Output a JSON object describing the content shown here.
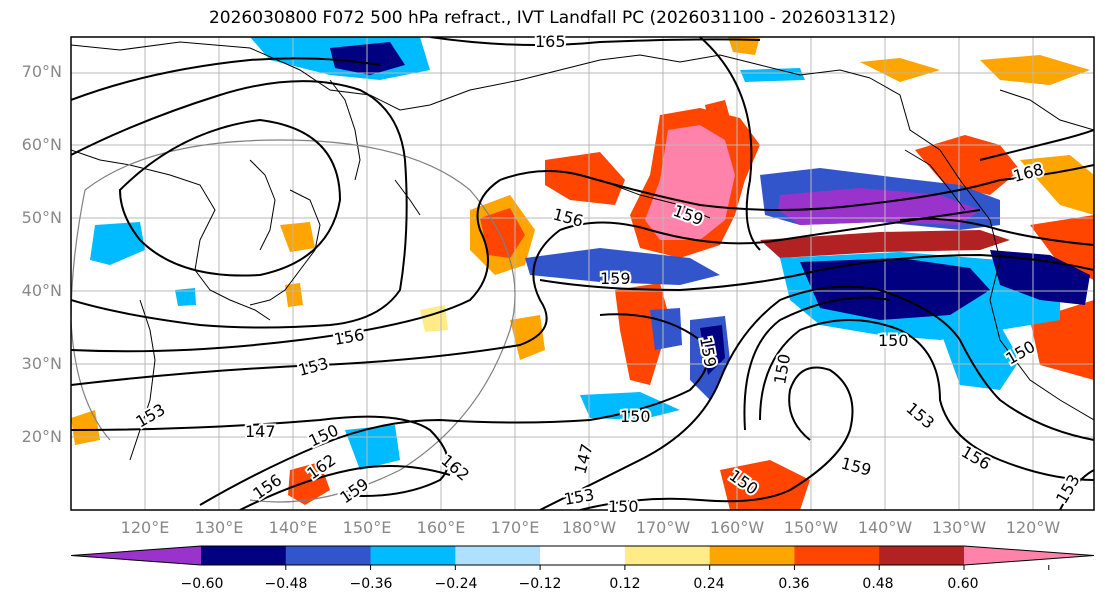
{
  "title": "2026030800 F072 500 hPa refract., IVT Landfall PC (2026031100 - 2026031312)",
  "lat_labels": [
    "70°N",
    "60°N",
    "50°N",
    "40°N",
    "30°N",
    "20°N"
  ],
  "lon_labels": [
    "120°E",
    "130°E",
    "140°E",
    "150°E",
    "160°E",
    "170°E",
    "180°W",
    "170°W",
    "160°W",
    "150°W",
    "140°W",
    "130°W",
    "120°W"
  ],
  "contour_labels": [
    "165",
    "156",
    "159",
    "159",
    "168",
    "153",
    "156",
    "153",
    "150",
    "147",
    "150",
    "162",
    "162",
    "156",
    "159",
    "159",
    "150",
    "147",
    "153",
    "150",
    "150",
    "150",
    "150",
    "153",
    "159",
    "156",
    "153"
  ],
  "colorbar": {
    "ticks": [
      "−0.60",
      "−0.48",
      "−0.36",
      "−0.24",
      "−0.12",
      "0.12",
      "0.24",
      "0.36",
      "0.48",
      "0.60"
    ],
    "colors": [
      "#9933cc",
      "#000080",
      "#3355cc",
      "#00bbff",
      "#b0e0ff",
      "#ffffff",
      "#ffeb88",
      "#ffa500",
      "#ff4500",
      "#b22222",
      "#ff82ab"
    ]
  }
}
